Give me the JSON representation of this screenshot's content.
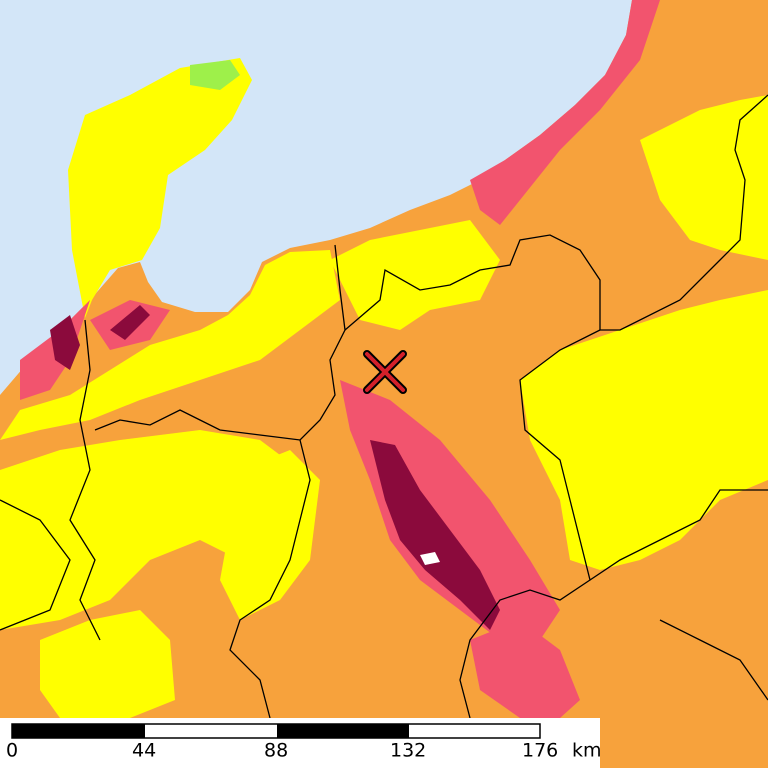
{
  "scale": {
    "ticks": [
      0,
      44,
      88,
      132,
      176
    ],
    "unit": "km"
  }
}
